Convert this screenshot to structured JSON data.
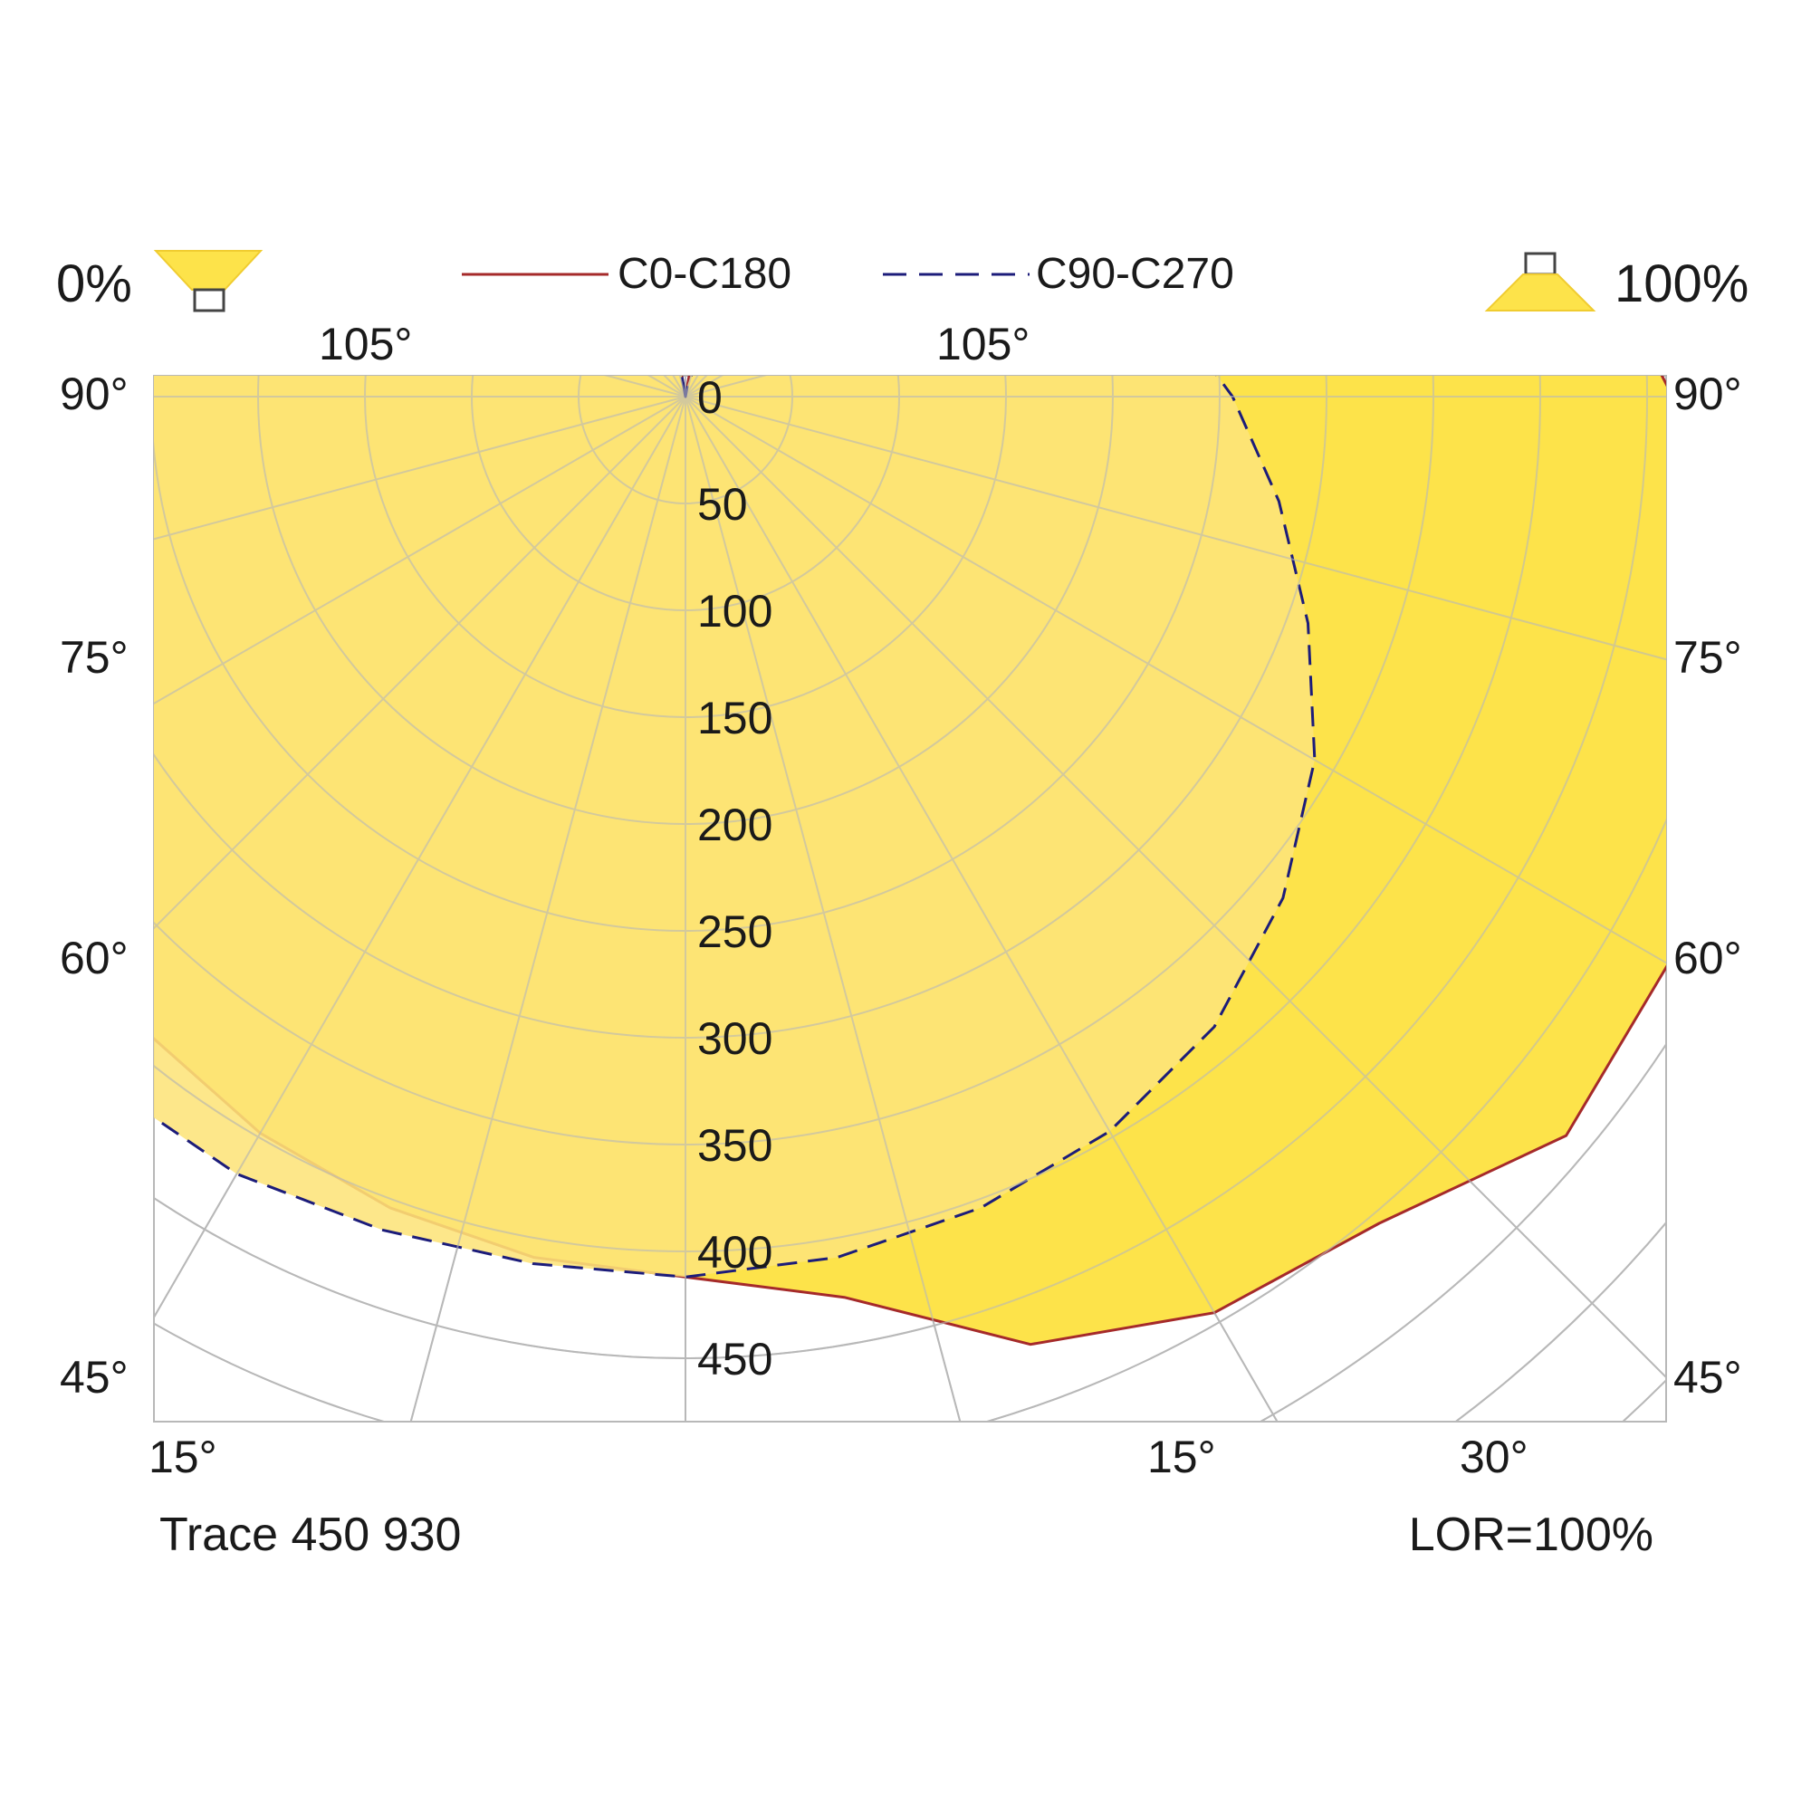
{
  "header": {
    "downward_percent": "0%",
    "upward_percent": "100%",
    "legend": [
      {
        "label": "C0-C180",
        "color": "#a52a2a",
        "style": "solid"
      },
      {
        "label": "C90-C270",
        "color": "#1c1c7a",
        "style": "dashed"
      }
    ]
  },
  "footer": {
    "product": "Trace 450 930",
    "lor": "LOR=100%"
  },
  "colors": {
    "fill_c0": "#fde34a",
    "fill_c90": "#fde47a",
    "grid": "#b8b8b8",
    "background": "#ffffff"
  },
  "chart_data": {
    "type": "polar-luminous-intensity",
    "radial_ticks": [
      "0",
      "50",
      "100",
      "150",
      "200",
      "250",
      "300",
      "350",
      "400",
      "450"
    ],
    "radial_values": [
      0,
      50,
      100,
      150,
      200,
      250,
      300,
      350,
      400,
      450
    ],
    "angle_labels": {
      "top": [
        "105°",
        "105°"
      ],
      "left": [
        "90°",
        "75°",
        "60°",
        "45°"
      ],
      "right": [
        "90°",
        "75°",
        "60°",
        "45°"
      ],
      "bottom": [
        "15°",
        "15°",
        "30°"
      ]
    },
    "series": [
      {
        "name": "C0-C180",
        "points": [
          {
            "angle": -180,
            "value": 0
          },
          {
            "angle": -170,
            "value": 65
          },
          {
            "angle": -160,
            "value": 110
          },
          {
            "angle": -150,
            "value": 165
          },
          {
            "angle": -140,
            "value": 205
          },
          {
            "angle": -130,
            "value": 245
          },
          {
            "angle": -120,
            "value": 275
          },
          {
            "angle": -110,
            "value": 300
          },
          {
            "angle": -100,
            "value": 320
          },
          {
            "angle": -90,
            "value": 333
          },
          {
            "angle": -80,
            "value": 345
          },
          {
            "angle": -70,
            "value": 355
          },
          {
            "angle": -60,
            "value": 368
          },
          {
            "angle": -50,
            "value": 380
          },
          {
            "angle": -40,
            "value": 390
          },
          {
            "angle": -30,
            "value": 398
          },
          {
            "angle": -20,
            "value": 404
          },
          {
            "angle": -10,
            "value": 409
          },
          {
            "angle": 0,
            "value": 412
          },
          {
            "angle": 10,
            "value": 428
          },
          {
            "angle": 20,
            "value": 472
          },
          {
            "angle": 30,
            "value": 495
          },
          {
            "angle": 40,
            "value": 505
          },
          {
            "angle": 50,
            "value": 538
          },
          {
            "angle": 60,
            "value": 531
          },
          {
            "angle": 70,
            "value": 511
          },
          {
            "angle": 80,
            "value": 487
          },
          {
            "angle": 90,
            "value": 462
          },
          {
            "angle": 100,
            "value": 430
          },
          {
            "angle": 110,
            "value": 372
          },
          {
            "angle": 120,
            "value": 310
          },
          {
            "angle": 130,
            "value": 255
          },
          {
            "angle": 140,
            "value": 200
          },
          {
            "angle": 150,
            "value": 135
          },
          {
            "angle": 160,
            "value": 86
          },
          {
            "angle": 170,
            "value": 38
          },
          {
            "angle": 180,
            "value": 0
          }
        ]
      },
      {
        "name": "C90-C270",
        "points": [
          {
            "angle": -180,
            "value": 0
          },
          {
            "angle": -170,
            "value": 42
          },
          {
            "angle": -160,
            "value": 93
          },
          {
            "angle": -150,
            "value": 165
          },
          {
            "angle": -140,
            "value": 243
          },
          {
            "angle": -130,
            "value": 340
          },
          {
            "angle": -120,
            "value": 400
          },
          {
            "angle": -110,
            "value": 422
          },
          {
            "angle": -100,
            "value": 439
          },
          {
            "angle": -90,
            "value": 435
          },
          {
            "angle": -80,
            "value": 428
          },
          {
            "angle": -70,
            "value": 420
          },
          {
            "angle": -60,
            "value": 418
          },
          {
            "angle": -50,
            "value": 421
          },
          {
            "angle": -40,
            "value": 421
          },
          {
            "angle": -30,
            "value": 420
          },
          {
            "angle": -20,
            "value": 415
          },
          {
            "angle": -10,
            "value": 412
          },
          {
            "angle": 0,
            "value": 412
          },
          {
            "angle": 10,
            "value": 409
          },
          {
            "angle": 20,
            "value": 404
          },
          {
            "angle": 30,
            "value": 397
          },
          {
            "angle": 40,
            "value": 385
          },
          {
            "angle": 50,
            "value": 365
          },
          {
            "angle": 60,
            "value": 340
          },
          {
            "angle": 70,
            "value": 310
          },
          {
            "angle": 80,
            "value": 282
          },
          {
            "angle": 90,
            "value": 256
          },
          {
            "angle": 100,
            "value": 230
          },
          {
            "angle": 110,
            "value": 204
          },
          {
            "angle": 120,
            "value": 175
          },
          {
            "angle": 130,
            "value": 144
          },
          {
            "angle": 140,
            "value": 108
          },
          {
            "angle": 150,
            "value": 67
          },
          {
            "angle": 160,
            "value": 24
          },
          {
            "angle": 170,
            "value": 6
          },
          {
            "angle": 180,
            "value": 0
          }
        ]
      }
    ]
  }
}
